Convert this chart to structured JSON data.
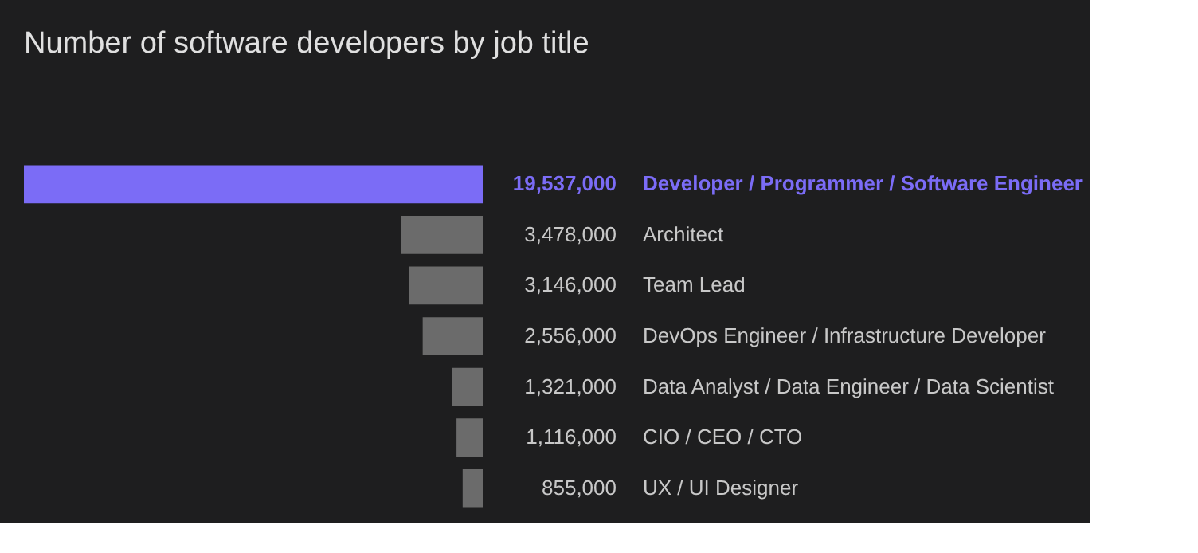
{
  "chart_data": {
    "type": "bar",
    "orientation": "horizontal",
    "title": "Number of software developers by job title",
    "categories": [
      "Developer / Programmer / Software Engineer",
      "Architect",
      "Team Lead",
      "DevOps Engineer / Infrastructure Developer",
      "Data Analyst / Data Engineer / Data Scientist",
      "CIO / CEO / CTO",
      "UX / UI Designer"
    ],
    "values": [
      19537000,
      3478000,
      3146000,
      2556000,
      1321000,
      1116000,
      855000
    ],
    "colors": [
      "#7b6cf6",
      "#6b6b6b",
      "#6b6b6b",
      "#6b6b6b",
      "#6b6b6b",
      "#6b6b6b",
      "#6b6b6b"
    ],
    "value_labels": [
      "19,537,000",
      "3,478,000",
      "3,146,000",
      "2,556,000",
      "1,321,000",
      "1,116,000",
      "855,000"
    ],
    "relative": false,
    "grid": false
  }
}
